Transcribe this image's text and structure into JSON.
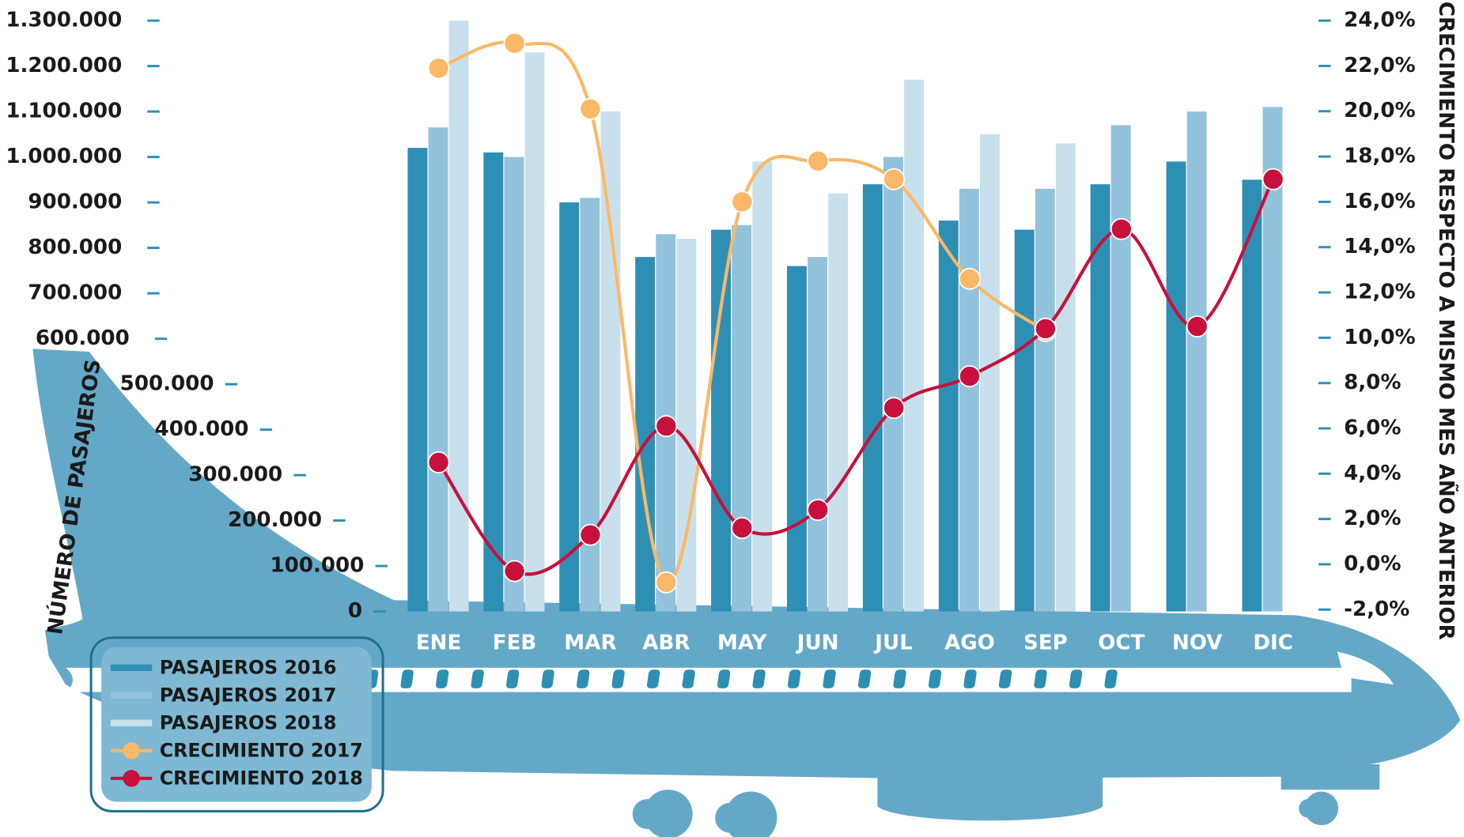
{
  "chart_data": {
    "type": "bar",
    "y_axis_label": "NÚMERO DE PASAJEROS",
    "y2_axis_label": "CRECIMIENTO RESPECTO A MISMO MES AÑO  ANTERIOR",
    "categories": [
      "ENE",
      "FEB",
      "MAR",
      "ABR",
      "MAY",
      "JUN",
      "JUL",
      "AGO",
      "SEP",
      "OCT",
      "NOV",
      "DIC"
    ],
    "series": [
      {
        "name": "PASAJEROS 2016",
        "type": "bar",
        "color": "#2e8fb5",
        "values": [
          1020000,
          1010000,
          900000,
          780000,
          840000,
          760000,
          940000,
          860000,
          840000,
          940000,
          990000,
          950000
        ]
      },
      {
        "name": "PASAJEROS 2017",
        "type": "bar",
        "color": "#93c2dc",
        "values": [
          1065000,
          1000000,
          910000,
          830000,
          850000,
          780000,
          1000000,
          930000,
          930000,
          1070000,
          1100000,
          1110000
        ]
      },
      {
        "name": "PASAJEROS 2018",
        "type": "bar",
        "color": "#c8e0ec",
        "values": [
          1300000,
          1230000,
          1100000,
          820000,
          990000,
          920000,
          1170000,
          1050000,
          1030000,
          null,
          null,
          null
        ]
      },
      {
        "name": "CRECIMIENTO 2017",
        "type": "line",
        "axis": "y2",
        "color": "#fbb867",
        "values": [
          21.9,
          23.0,
          20.1,
          -0.8,
          16.0,
          17.8,
          17.0,
          12.6,
          10.3,
          null,
          null,
          null
        ]
      },
      {
        "name": "CRECIMIENTO 2018",
        "type": "line",
        "axis": "y2",
        "color": "#c8103c",
        "values": [
          4.5,
          -0.3,
          1.3,
          6.1,
          1.6,
          2.4,
          6.9,
          8.3,
          10.4,
          14.8,
          10.5,
          17.0
        ]
      }
    ],
    "ylim": [
      0,
      1300000
    ],
    "yticks": [
      0,
      {
        "value": 100000,
        "label": "100.000"
      },
      {
        "value": 200000,
        "label": "200.000"
      },
      {
        "value": 300000,
        "label": "300.000"
      },
      {
        "value": 400000,
        "label": "400.000"
      },
      {
        "value": 500000,
        "label": "500.000"
      },
      {
        "value": 600000,
        "label": "600.000"
      },
      {
        "value": 700000,
        "label": "700.000"
      },
      {
        "value": 800000,
        "label": "800.000"
      },
      {
        "value": 900000,
        "label": "900.000"
      },
      {
        "value": 1000000,
        "label": "1.000.000"
      },
      {
        "value": 1100000,
        "label": "1.100.000"
      },
      {
        "value": 1200000,
        "label": "1.200.000"
      },
      {
        "value": 1300000,
        "label": "1.300.000"
      }
    ],
    "y2lim": [
      -2,
      24
    ],
    "y2ticks": [
      {
        "value": -2,
        "label": "-2,0%"
      },
      {
        "value": 0,
        "label": "0,0%"
      },
      {
        "value": 2,
        "label": "2,0%"
      },
      {
        "value": 4,
        "label": "4,0%"
      },
      {
        "value": 6,
        "label": "6,0%"
      },
      {
        "value": 8,
        "label": "8,0%"
      },
      {
        "value": 10,
        "label": "10,0%"
      },
      {
        "value": 12,
        "label": "12,0%"
      },
      {
        "value": 14,
        "label": "14,0%"
      },
      {
        "value": 16,
        "label": "16,0%"
      },
      {
        "value": 18,
        "label": "18,0%"
      },
      {
        "value": 20,
        "label": "20,0%"
      },
      {
        "value": 22,
        "label": "22,0%"
      },
      {
        "value": 24,
        "label": "24,0%"
      }
    ],
    "legend": "bottom-left"
  }
}
